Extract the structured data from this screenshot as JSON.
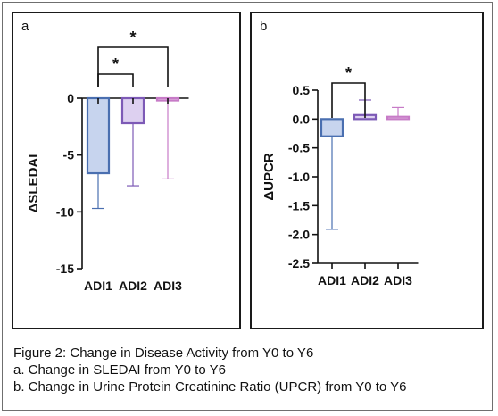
{
  "chart_data": [
    {
      "type": "bar",
      "panel_label": "a",
      "categories": [
        "ADI1",
        "ADI2",
        "ADI3"
      ],
      "values": [
        -6.6,
        -2.2,
        -0.2
      ],
      "error_bars": [
        [
          -9.7,
          -6.6
        ],
        [
          -7.7,
          -2.2
        ],
        [
          -7.1,
          -0.2
        ]
      ],
      "ylabel": "ΔSLEDAI",
      "xlabel": "",
      "ylim": [
        -15,
        0
      ],
      "yticks": [
        0,
        -5,
        -10,
        -15
      ],
      "ytick_labels": [
        "0",
        "-5",
        "-10",
        "-15"
      ],
      "colors": [
        "#4a6fb0",
        "#7d5ab6",
        "#c77bc7"
      ],
      "fills": [
        "#c7d4ee",
        "#ddd0f0",
        "#f0d8f0"
      ],
      "significance": [
        {
          "from": "ADI1",
          "to": "ADI2",
          "label": "*"
        },
        {
          "from": "ADI1",
          "to": "ADI3",
          "label": "*"
        }
      ]
    },
    {
      "type": "bar",
      "panel_label": "b",
      "categories": [
        "ADI1",
        "ADI2",
        "ADI3"
      ],
      "values": [
        -0.3,
        0.07,
        0.04
      ],
      "error_bars": [
        [
          -1.91,
          -0.3
        ],
        [
          0.07,
          0.33
        ],
        [
          0.04,
          0.2
        ]
      ],
      "ylabel": "ΔUPCR",
      "xlabel": "",
      "ylim": [
        -2.5,
        0.5
      ],
      "yticks": [
        0.5,
        0.0,
        -0.5,
        -1.0,
        -1.5,
        -2.0,
        -2.5
      ],
      "ytick_labels": [
        "0.5",
        "0.0",
        "-0.5",
        "-1.0",
        "-1.5",
        "-2.0",
        "-2.5"
      ],
      "colors": [
        "#4a6fb0",
        "#7d5ab6",
        "#c77bc7"
      ],
      "fills": [
        "#c7d4ee",
        "#ddd0f0",
        "#f0d8f0"
      ],
      "significance": [
        {
          "from": "ADI1",
          "to": "ADI2",
          "label": "*"
        }
      ]
    }
  ],
  "caption": {
    "line1": "Figure 2: Change in Disease Activity from Y0 to Y6",
    "line2": "a. Change in SLEDAI from Y0 to Y6",
    "line3": "b. Change in Urine Protein Creatinine Ratio (UPCR) from Y0 to Y6"
  }
}
